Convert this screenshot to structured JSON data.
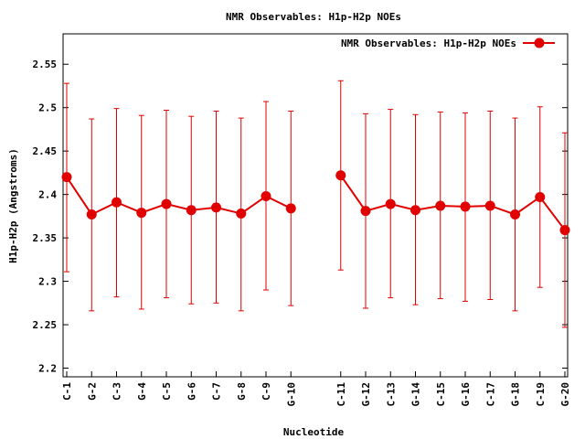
{
  "chart_data": {
    "type": "line",
    "title": "NMR Observables: H1p-H2p NOEs",
    "xlabel": "Nucleotide",
    "ylabel": "H1p-H2p (Angstroms)",
    "legend": {
      "label": "NMR Observables: H1p-H2p NOEs",
      "placement": "top-right"
    },
    "ylim": [
      2.19,
      2.585
    ],
    "yticks": [
      "2.2",
      "2.25",
      "2.3",
      "2.35",
      "2.4",
      "2.45",
      "2.5",
      "2.55"
    ],
    "color": "#e00000",
    "grid": false,
    "segments": [
      {
        "categories": [
          "C-1",
          "G-2",
          "C-3",
          "G-4",
          "C-5",
          "G-6",
          "C-7",
          "G-8",
          "C-9",
          "G-10"
        ],
        "values": [
          2.42,
          2.377,
          2.391,
          2.379,
          2.389,
          2.382,
          2.385,
          2.378,
          2.398,
          2.384
        ],
        "err_low": [
          2.311,
          2.266,
          2.282,
          2.268,
          2.281,
          2.274,
          2.275,
          2.266,
          2.29,
          2.272
        ],
        "err_high": [
          2.528,
          2.487,
          2.499,
          2.491,
          2.497,
          2.49,
          2.496,
          2.488,
          2.507,
          2.496
        ]
      },
      {
        "categories": [
          "C-11",
          "G-12",
          "C-13",
          "G-14",
          "C-15",
          "G-16",
          "C-17",
          "G-18",
          "C-19",
          "G-20"
        ],
        "values": [
          2.422,
          2.381,
          2.389,
          2.382,
          2.387,
          2.386,
          2.387,
          2.377,
          2.397,
          2.359
        ],
        "err_low": [
          2.313,
          2.269,
          2.281,
          2.273,
          2.28,
          2.277,
          2.279,
          2.266,
          2.293,
          2.247
        ],
        "err_high": [
          2.531,
          2.493,
          2.498,
          2.492,
          2.495,
          2.494,
          2.496,
          2.488,
          2.501,
          2.471
        ]
      }
    ]
  }
}
